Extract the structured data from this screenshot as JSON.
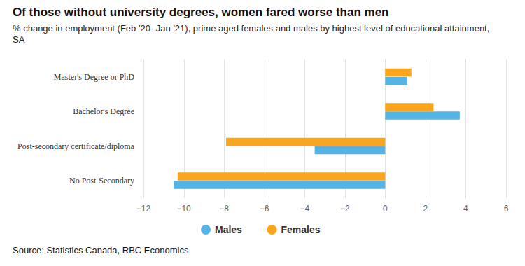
{
  "chart_data": {
    "type": "bar",
    "orientation": "horizontal",
    "title": "Of those without university degrees, women fared worse than men",
    "subtitle": "% change in employment (Feb '20- Jan '21), prime aged females and males by highest level of educational attainment,  SA",
    "source": "Source: Statistics Canada, RBC Economics",
    "categories": [
      "Master's Degree or PhD",
      "Bachelor's Degree",
      "Post-secondary certificate/diploma",
      "No Post-Secondary"
    ],
    "series": [
      {
        "name": "Males",
        "color": "#55b4e6",
        "values": [
          1.1,
          3.7,
          -3.5,
          -10.5
        ]
      },
      {
        "name": "Females",
        "color": "#f9a51e",
        "values": [
          1.3,
          2.4,
          -7.9,
          -10.3
        ]
      }
    ],
    "xlim": [
      -12,
      6
    ],
    "xticks": [
      {
        "value": -12,
        "label": "−12"
      },
      {
        "value": -10,
        "label": "−10"
      },
      {
        "value": -8,
        "label": "−8"
      },
      {
        "value": -6,
        "label": "−6"
      },
      {
        "value": -4,
        "label": "−4"
      },
      {
        "value": -2,
        "label": "−2"
      },
      0,
      2,
      4,
      6
    ],
    "grid": true,
    "legend": "bottom"
  }
}
